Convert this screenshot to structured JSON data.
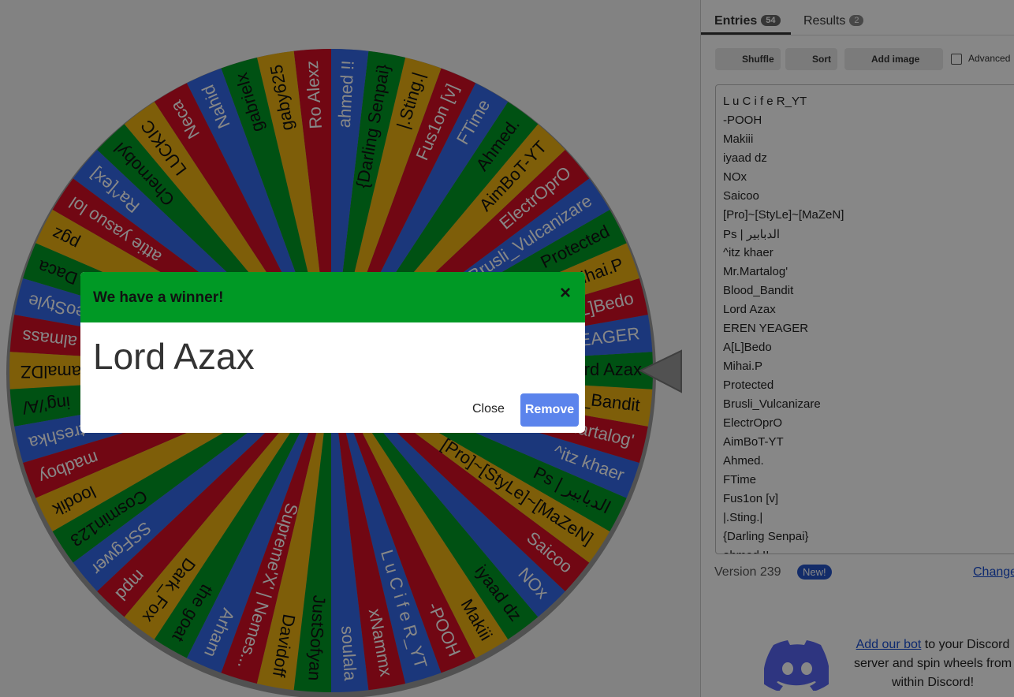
{
  "tabs": {
    "entries": {
      "label": "Entries",
      "count": 54
    },
    "results": {
      "label": "Results",
      "count": 2
    }
  },
  "toolbar": {
    "shuffle": "Shuffle",
    "sort": "Sort",
    "add_image": "Add image",
    "advanced": "Advanced"
  },
  "wheel": {
    "entries": [
      "L u C i f e R_YT",
      "-POOH",
      "Makiii",
      "iyaad dz",
      "NOx",
      "Saicoo",
      "[Pro]~[StyLe]~[MaZeN]",
      "Ps | الدبابير",
      "^itz khaer",
      "Mr.Martalog'",
      "Blood_Bandit",
      "Lord Azax",
      "EREN YEAGER",
      "A[L]Bedo",
      "Mihai.P",
      "Protected",
      "Brusli_Vulcanizare",
      "ElectrOprO",
      "AimBoT-YT",
      "Ahmed.",
      "FTime",
      "Fus1on [v]",
      "|.Sting.|",
      "{Darling Senpai}",
      "ahmed !!",
      "Ro Alexz",
      "gaby625",
      "gabrielx",
      "Nahid",
      "Neca",
      "LUCKIC",
      "Chernobyl",
      "Ra^[ex]",
      "attie yasuo lol",
      "pgz",
      "Daca",
      "eoStyle",
      "almass",
      "amalDZ",
      "ing'/A/",
      "matreshka",
      "madboy",
      "loodik",
      "Cosmin123",
      "SSFgwer",
      "mpd",
      "Dark_Fox",
      "the goat",
      "Arham",
      "Supreme'X' | Nemes...",
      "Davidoff",
      "JustSofyan",
      "soulala",
      "xNammx"
    ]
  },
  "footer": {
    "version": "Version 239",
    "new_badge": "New!",
    "changelog": "Change"
  },
  "discord": {
    "link": "Add our bot",
    "text": " to your Discord server and spin wheels from within Discord!"
  },
  "modal": {
    "title": "We have a winner!",
    "close_icon": "×",
    "winner": "Lord Azax",
    "close": "Close",
    "remove": "Remove"
  }
}
